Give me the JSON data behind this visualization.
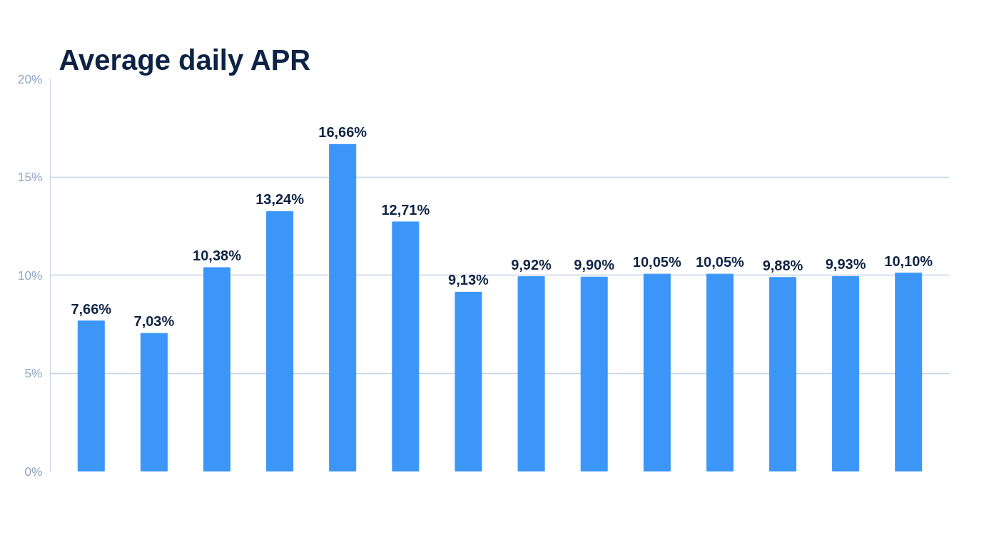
{
  "chart_data": {
    "type": "bar",
    "title": "Average daily APR",
    "categories": [
      null,
      null,
      null,
      null,
      null,
      null,
      null,
      null,
      null,
      null,
      null,
      null,
      null,
      null
    ],
    "values": [
      7.66,
      7.03,
      10.38,
      13.24,
      16.66,
      12.71,
      9.13,
      9.92,
      9.9,
      10.05,
      10.05,
      9.88,
      9.93,
      10.1
    ],
    "value_labels": [
      "7,66%",
      "7,03%",
      "10,38%",
      "13,24%",
      "16,66%",
      "12,71%",
      "9,13%",
      "9,92%",
      "9,90%",
      "10,05%",
      "10,05%",
      "9,88%",
      "9,93%",
      "10,10%"
    ],
    "color": "#3b96f7",
    "ylim": [
      0,
      20
    ],
    "yticks": [
      {
        "value": 0,
        "label": "0%"
      },
      {
        "value": 5,
        "label": "5%"
      },
      {
        "value": 10,
        "label": "10%"
      },
      {
        "value": 15,
        "label": "15%"
      },
      {
        "value": 20,
        "label": "20%"
      }
    ],
    "grid": "y"
  }
}
